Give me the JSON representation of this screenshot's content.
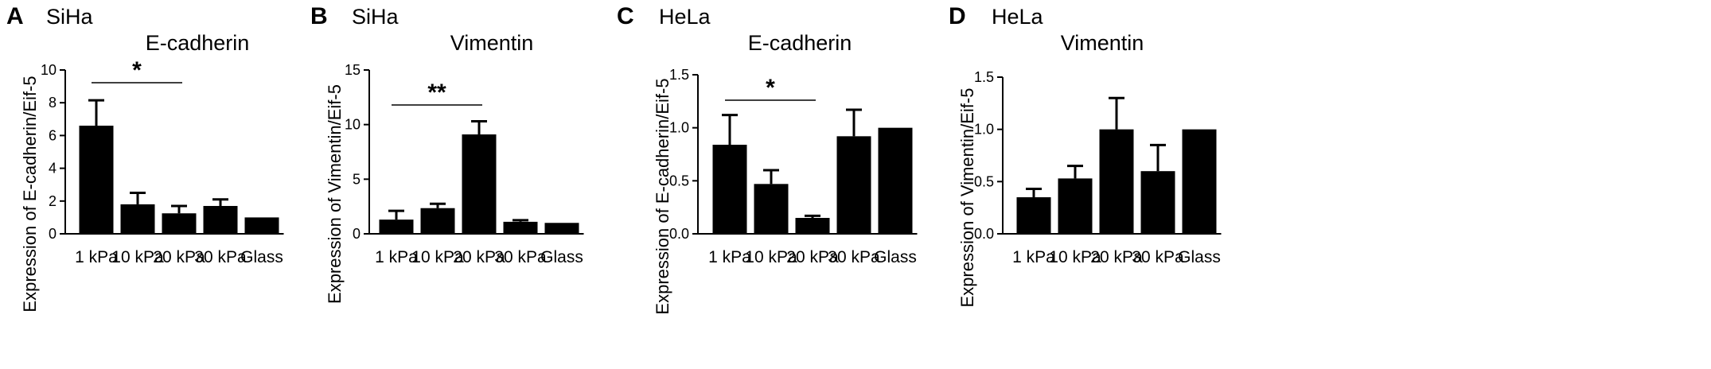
{
  "chart_data": [
    {
      "type": "bar",
      "panel": "A",
      "cell_line": "SiHa",
      "title": "E-cadherin",
      "ylabel": "Expression of E-cadherin/Eif-5",
      "xlabel": "",
      "categories": [
        "1 kPa",
        "10 kPa",
        "20 kPa",
        "30 kPa",
        "Glass"
      ],
      "values": [
        6.6,
        1.8,
        1.25,
        1.7,
        1.0
      ],
      "errors": [
        1.55,
        0.7,
        0.45,
        0.4,
        0
      ],
      "ylim": [
        0,
        10
      ],
      "yticks": [
        "0",
        "2",
        "4",
        "6",
        "8",
        "10"
      ],
      "significance": {
        "from": 0,
        "to": 2,
        "label": "*"
      },
      "bar_color": "#000000"
    },
    {
      "type": "bar",
      "panel": "B",
      "cell_line": "SiHa",
      "title": "Vimentin",
      "ylabel": "Expression of Vimentin/Eif-5",
      "xlabel": "",
      "categories": [
        "1 kPa",
        "10 kPa",
        "20 kPa",
        "30 kPa",
        "Glass"
      ],
      "values": [
        1.3,
        2.35,
        9.1,
        1.1,
        1.0
      ],
      "errors": [
        0.8,
        0.4,
        1.2,
        0.15,
        0
      ],
      "ylim": [
        0,
        15
      ],
      "yticks": [
        "0",
        "5",
        "10",
        "15"
      ],
      "significance": {
        "from": 0,
        "to": 2,
        "label": "**"
      },
      "bar_color": "#000000"
    },
    {
      "type": "bar",
      "panel": "C",
      "cell_line": "HeLa",
      "title": "E-cadherin",
      "ylabel": "Expression of E-cadherin/Eif-5",
      "xlabel": "",
      "categories": [
        "1 kPa",
        "10 kPa",
        "20 kPa",
        "30 kPa",
        "Glass"
      ],
      "values": [
        0.84,
        0.47,
        0.15,
        0.92,
        1.0
      ],
      "errors": [
        0.28,
        0.13,
        0.02,
        0.25,
        0
      ],
      "ylim": [
        0,
        1.5
      ],
      "yticks": [
        "0.0",
        "0.5",
        "1.0",
        "1.5"
      ],
      "significance": {
        "from": 0,
        "to": 2,
        "label": "*"
      },
      "bar_color": "#000000"
    },
    {
      "type": "bar",
      "panel": "D",
      "cell_line": "HeLa",
      "title": "Vimentin",
      "ylabel": "Expression of Vimentin/Eif-5",
      "xlabel": "",
      "categories": [
        "1 kPa",
        "10 kPa",
        "20 kPa",
        "30 kPa",
        "Glass"
      ],
      "values": [
        0.35,
        0.53,
        1.0,
        0.6,
        1.0
      ],
      "errors": [
        0.08,
        0.12,
        0.3,
        0.25,
        0
      ],
      "ylim": [
        0,
        1.5
      ],
      "yticks": [
        "0.0",
        "0.5",
        "1.0",
        "1.5"
      ],
      "significance": null,
      "bar_color": "#000000"
    }
  ]
}
